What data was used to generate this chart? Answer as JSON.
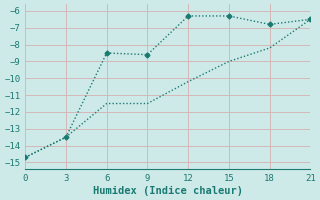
{
  "xlabel": "Humidex (Indice chaleur)",
  "bg_color": "#ceeae8",
  "grid_color": "#d4b8b8",
  "line_color": "#1a7a72",
  "line1_x": [
    0,
    3,
    6,
    9,
    12,
    15,
    18,
    21
  ],
  "line1_y": [
    -14.7,
    -13.5,
    -11.5,
    -11.5,
    -10.2,
    -9.0,
    -8.2,
    -6.5
  ],
  "line2_x": [
    0,
    3,
    6,
    9,
    12,
    15,
    18,
    21
  ],
  "line2_y": [
    -14.7,
    -13.5,
    -8.5,
    -8.6,
    -6.3,
    -6.3,
    -6.8,
    -6.5
  ],
  "xlim": [
    0,
    21
  ],
  "ylim": [
    -15.4,
    -5.6
  ],
  "xticks": [
    0,
    3,
    6,
    9,
    12,
    15,
    18,
    21
  ],
  "yticks": [
    -15,
    -14,
    -13,
    -12,
    -11,
    -10,
    -9,
    -8,
    -7,
    -6
  ],
  "font_family": "monospace",
  "label_fontsize": 7.5,
  "tick_fontsize": 6.5
}
